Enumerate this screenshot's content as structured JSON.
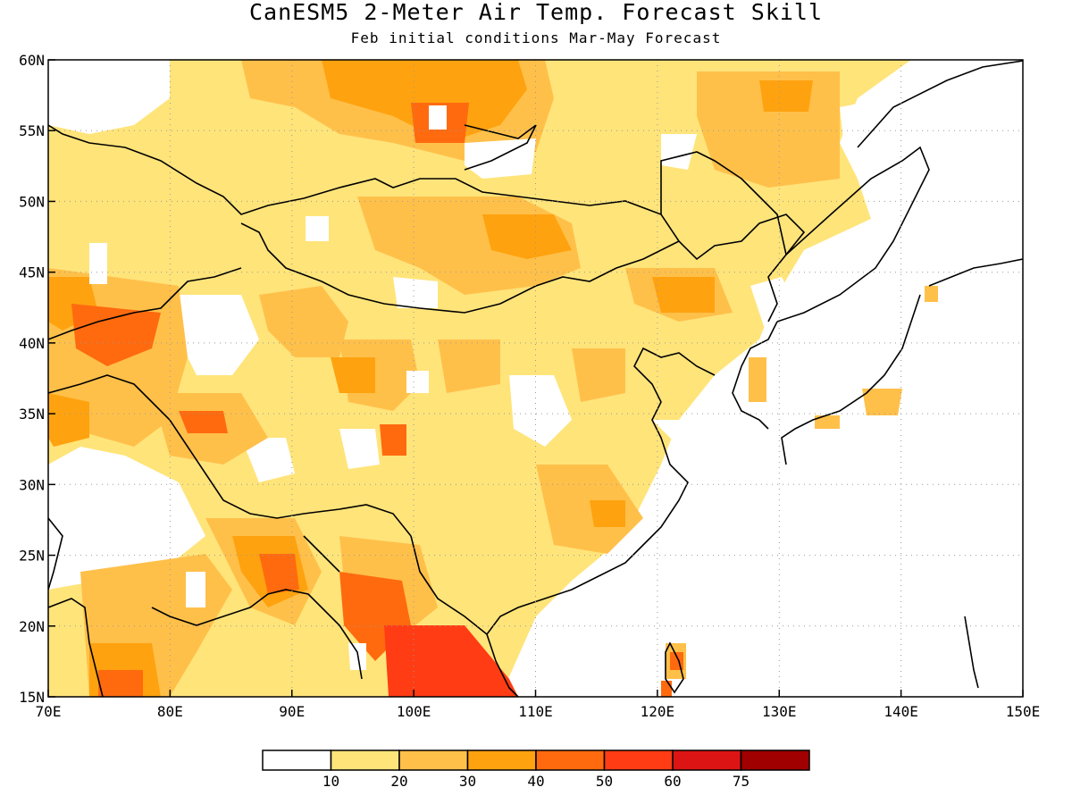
{
  "title": "CanESM5 2-Meter Air Temp. Forecast Skill",
  "subtitle": "Feb initial conditions  Mar-May Forecast",
  "map": {
    "lon_range": [
      70,
      150
    ],
    "lat_range": [
      15,
      60
    ],
    "x_ticks": [
      "70E",
      "80E",
      "90E",
      "100E",
      "110E",
      "120E",
      "130E",
      "140E",
      "150E"
    ],
    "y_ticks": [
      "15N",
      "20N",
      "25N",
      "30N",
      "35N",
      "40N",
      "45N",
      "50N",
      "55N",
      "60N"
    ],
    "grid": true
  },
  "colorbar": {
    "labels": [
      "10",
      "20",
      "30",
      "40",
      "50",
      "60",
      "75"
    ],
    "colors": [
      "#ffffff",
      "#ffe47a",
      "#ffc04a",
      "#ffa20f",
      "#ff6a0f",
      "#ff3c14",
      "#dc1414",
      "#a00000"
    ]
  }
}
